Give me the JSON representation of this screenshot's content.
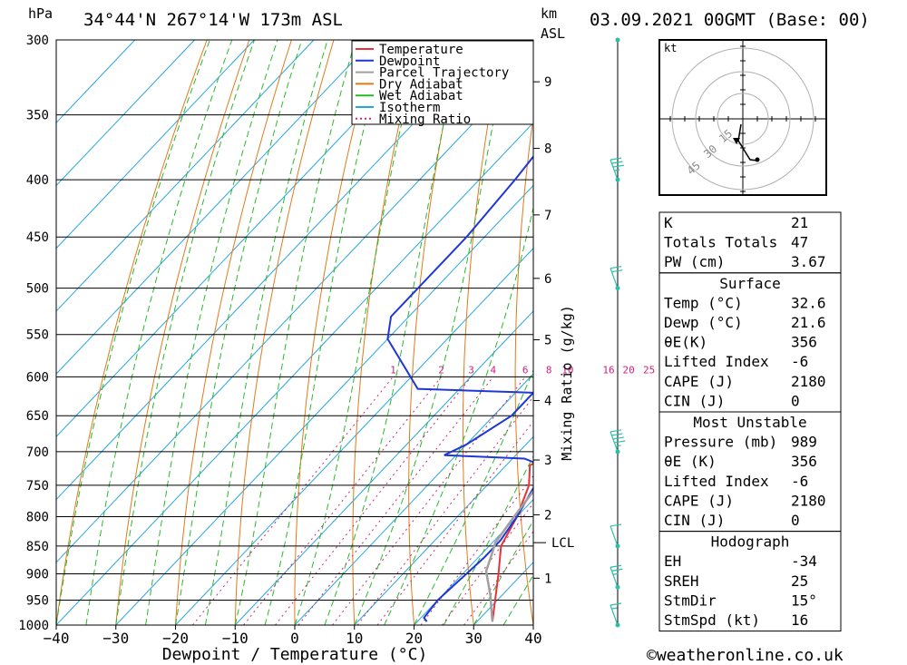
{
  "header": {
    "pressure_unit": "hPa",
    "station": "34°44'N  267°14'W  173m  ASL",
    "km_unit": "km",
    "km_sub": "ASL",
    "datetime": "03.09.2021  00GMT  (Base: 00)"
  },
  "footer": {
    "copyright": "©weatheronline.co.uk"
  },
  "colors": {
    "temperature": "#e8323a",
    "dewpoint": "#1f37d6",
    "parcel": "#a0a0a0",
    "dry_adiabat": "#e07a1a",
    "wet_adiabat": "#2ab82a",
    "isotherm": "#27a6e0",
    "mixing_ratio": "#d0237a",
    "wind_barb": "#29c0a9",
    "axis": "#000000"
  },
  "chart_data": {
    "type": "line",
    "xlabel": "Dewpoint / Temperature (°C)",
    "ylabel_right": "Mixing Ratio (g/kg)",
    "x_ticks": [
      -40,
      -30,
      -20,
      -10,
      0,
      10,
      20,
      30,
      40
    ],
    "xlim": [
      -40,
      40
    ],
    "y_scale": "log",
    "y_ticks": [
      300,
      350,
      400,
      450,
      500,
      550,
      600,
      650,
      700,
      750,
      800,
      850,
      900,
      950,
      1000
    ],
    "ylim": [
      1000,
      300
    ],
    "km_ticks": [
      {
        "label": "1",
        "p": 908
      },
      {
        "label": "2",
        "p": 797
      },
      {
        "label": "3",
        "p": 712
      },
      {
        "label": "4",
        "p": 630
      },
      {
        "label": "5",
        "p": 556
      },
      {
        "label": "6",
        "p": 490
      },
      {
        "label": "7",
        "p": 430
      },
      {
        "label": "8",
        "p": 375
      },
      {
        "label": "9",
        "p": 327
      }
    ],
    "lcl": {
      "label": "LCL",
      "p": 844
    },
    "mixing_ratio_labels": [
      "1",
      "2",
      "3",
      "4",
      "6",
      "8",
      "10",
      "16",
      "20",
      "25"
    ],
    "legend": [
      "Temperature",
      "Dewpoint",
      "Parcel Trajectory",
      "Dry Adiabat",
      "Wet Adiabat",
      "Isotherm",
      "Mixing Ratio"
    ],
    "legend_position": "top-right",
    "series": [
      {
        "name": "Temperature",
        "points": [
          [
            32.6,
            993
          ],
          [
            26,
            900
          ],
          [
            22,
            850
          ],
          [
            20,
            800
          ],
          [
            17,
            750
          ],
          [
            14,
            720
          ],
          [
            16,
            700
          ],
          [
            17.5,
            690
          ],
          [
            15,
            660
          ],
          [
            12,
            625
          ],
          [
            12,
            610
          ],
          [
            13.5,
            600
          ],
          [
            12,
            570
          ],
          [
            13.5,
            550
          ],
          [
            12.5,
            520
          ],
          [
            11.5,
            500
          ],
          [
            12,
            480
          ],
          [
            11,
            450
          ],
          [
            6,
            400
          ],
          [
            3,
            380
          ],
          [
            1,
            360
          ],
          [
            -1,
            350
          ],
          [
            -2,
            335
          ],
          [
            -5,
            315
          ],
          [
            -7,
            300
          ]
        ]
      },
      {
        "name": "Dewpoint",
        "points": [
          [
            21.6,
            993
          ],
          [
            20.5,
            985
          ],
          [
            20,
            950
          ],
          [
            21,
            870
          ],
          [
            21,
            840
          ],
          [
            20,
            800
          ],
          [
            18,
            750
          ],
          [
            16,
            720
          ],
          [
            12,
            710
          ],
          [
            -2,
            705
          ],
          [
            0,
            690
          ],
          [
            3,
            650
          ],
          [
            3,
            620
          ],
          [
            -17,
            615
          ],
          [
            -30,
            555
          ],
          [
            -33,
            530
          ],
          [
            -33,
            500
          ],
          [
            -33,
            450
          ],
          [
            -34,
            400
          ],
          [
            -35,
            370
          ],
          [
            -36,
            350
          ],
          [
            -31,
            333
          ],
          [
            1,
            325
          ],
          [
            -1,
            310
          ],
          [
            1,
            300
          ]
        ]
      },
      {
        "name": "Parcel Trajectory",
        "points": [
          [
            32.6,
            993
          ],
          [
            28,
            940
          ],
          [
            23.5,
            895
          ],
          [
            21.5,
            860
          ],
          [
            20.5,
            844
          ],
          [
            19.5,
            800
          ],
          [
            18.5,
            750
          ],
          [
            17,
            700
          ],
          [
            15.5,
            650
          ],
          [
            14.5,
            600
          ],
          [
            13,
            550
          ],
          [
            11.5,
            500
          ],
          [
            9.5,
            450
          ],
          [
            6.5,
            400
          ],
          [
            3.5,
            370
          ]
        ]
      }
    ],
    "wind_barbs": [
      {
        "p": 1000,
        "speed_kt": 5
      },
      {
        "p": 925,
        "speed_kt": 15
      },
      {
        "p": 850,
        "speed_kt": 10
      },
      {
        "p": 700,
        "speed_kt": 35
      },
      {
        "p": 500,
        "speed_kt": 20
      },
      {
        "p": 400,
        "speed_kt": 25
      },
      {
        "p": 300,
        "speed_kt": 0
      }
    ]
  },
  "hodograph": {
    "unit": "kt",
    "ring_labels": [
      "15",
      "30",
      "45"
    ]
  },
  "indices": {
    "top": [
      {
        "label": "K",
        "value": "21"
      },
      {
        "label": "Totals Totals",
        "value": "47"
      },
      {
        "label": "PW (cm)",
        "value": "3.67"
      }
    ],
    "surface": {
      "title": "Surface",
      "rows": [
        {
          "label": "Temp (°C)",
          "value": "32.6"
        },
        {
          "label": "Dewp (°C)",
          "value": "21.6"
        },
        {
          "label": "θE(K)",
          "value": "356"
        },
        {
          "label": "Lifted Index",
          "value": "-6"
        },
        {
          "label": "CAPE (J)",
          "value": "2180"
        },
        {
          "label": "CIN (J)",
          "value": "0"
        }
      ]
    },
    "most_unstable": {
      "title": "Most Unstable",
      "rows": [
        {
          "label": "Pressure (mb)",
          "value": "989"
        },
        {
          "label": "θE (K)",
          "value": "356"
        },
        {
          "label": "Lifted Index",
          "value": "-6"
        },
        {
          "label": "CAPE (J)",
          "value": "2180"
        },
        {
          "label": "CIN (J)",
          "value": "0"
        }
      ]
    },
    "hodograph": {
      "title": "Hodograph",
      "rows": [
        {
          "label": "EH",
          "value": "-34"
        },
        {
          "label": "SREH",
          "value": "25"
        },
        {
          "label": "StmDir",
          "value": "15°"
        },
        {
          "label": "StmSpd (kt)",
          "value": "16"
        }
      ]
    }
  }
}
